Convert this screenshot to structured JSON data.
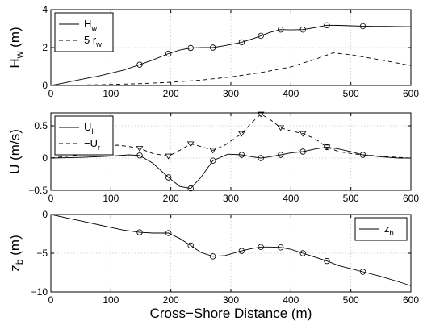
{
  "colors": {
    "axis": "#000000",
    "grid": "#c8c8c8",
    "line": "#000000",
    "background": "#ffffff"
  },
  "chart_data": [
    {
      "type": "line",
      "ylabel_main": "H",
      "ylabel_sub": "w",
      "ylabel_unit": " (m)",
      "xlabel": "",
      "xlim": [
        0,
        600
      ],
      "ylim": [
        0,
        4
      ],
      "xticks": [
        0,
        100,
        200,
        300,
        400,
        500,
        600
      ],
      "yticks": [
        0,
        2,
        4
      ],
      "grid": true,
      "legend_position": "top-left",
      "series": [
        {
          "name_main": "H",
          "name_sub": "w",
          "style": "solid",
          "marker": "circle",
          "x": [
            0,
            20,
            40,
            60,
            80,
            100,
            120,
            148,
            170,
            196,
            215,
            233,
            252,
            270,
            290,
            318,
            335,
            350,
            365,
            383,
            400,
            420,
            440,
            460,
            480,
            500,
            520,
            540,
            560,
            580,
            600
          ],
          "y": [
            0.0,
            0.12,
            0.25,
            0.38,
            0.5,
            0.65,
            0.8,
            1.1,
            1.35,
            1.68,
            1.87,
            1.98,
            2.0,
            2.0,
            2.1,
            2.28,
            2.45,
            2.62,
            2.8,
            2.95,
            2.93,
            2.95,
            3.05,
            3.18,
            3.17,
            3.15,
            3.13,
            3.12,
            3.12,
            3.11,
            3.1
          ],
          "marker_x": [
            148,
            196,
            233,
            270,
            318,
            350,
            383,
            420,
            460,
            520
          ]
        },
        {
          "name_main": "5 r",
          "name_sub": "w",
          "style": "dashed",
          "marker": "none",
          "x": [
            0,
            50,
            100,
            150,
            200,
            250,
            300,
            350,
            400,
            440,
            470,
            500,
            550,
            600
          ],
          "y": [
            0.0,
            0.02,
            0.05,
            0.1,
            0.17,
            0.28,
            0.45,
            0.68,
            0.98,
            1.38,
            1.72,
            1.62,
            1.35,
            1.05
          ]
        }
      ]
    },
    {
      "type": "line",
      "ylabel_main": "U",
      "ylabel_sub": "",
      "ylabel_unit": " (m/s)",
      "xlabel": "",
      "xlim": [
        0,
        600
      ],
      "ylim": [
        -0.5,
        0.7
      ],
      "xticks": [
        0,
        100,
        200,
        300,
        400,
        500,
        600
      ],
      "yticks": [
        -0.5,
        0,
        0.5
      ],
      "grid": true,
      "legend_position": "top-left",
      "series": [
        {
          "name_main": "U",
          "name_sub": "l",
          "style": "solid",
          "marker": "circle",
          "x": [
            0,
            50,
            100,
            130,
            148,
            170,
            196,
            215,
            233,
            250,
            270,
            295,
            318,
            335,
            350,
            365,
            383,
            400,
            420,
            440,
            460,
            480,
            500,
            520,
            550,
            580,
            600
          ],
          "y": [
            0.0,
            0.01,
            0.03,
            0.05,
            0.04,
            -0.08,
            -0.3,
            -0.44,
            -0.47,
            -0.3,
            -0.04,
            0.06,
            0.05,
            0.02,
            0.0,
            0.02,
            0.05,
            0.08,
            0.1,
            0.14,
            0.17,
            0.14,
            0.1,
            0.05,
            0.02,
            0.0,
            0.0
          ],
          "marker_x": [
            148,
            196,
            233,
            270,
            318,
            350,
            383,
            420,
            460,
            520
          ]
        },
        {
          "name_main": "−U",
          "name_sub": "r",
          "style": "dashed",
          "marker": "triangle-down",
          "x": [
            0,
            50,
            80,
            110,
            130,
            148,
            170,
            196,
            215,
            233,
            250,
            270,
            290,
            318,
            335,
            350,
            365,
            383,
            400,
            420,
            440,
            460,
            480,
            500,
            520,
            550,
            580,
            600
          ],
          "y": [
            0.0,
            0.05,
            0.15,
            0.2,
            0.18,
            0.15,
            0.07,
            0.03,
            0.12,
            0.22,
            0.18,
            0.12,
            0.2,
            0.38,
            0.55,
            0.68,
            0.6,
            0.47,
            0.42,
            0.38,
            0.3,
            0.17,
            0.1,
            0.07,
            0.05,
            0.03,
            0.01,
            0.0
          ],
          "marker_x": [
            148,
            196,
            233,
            270,
            318,
            350,
            383,
            420,
            460
          ]
        }
      ]
    },
    {
      "type": "line",
      "ylabel_main": "z",
      "ylabel_sub": "b",
      "ylabel_unit": " (m)",
      "xlabel": "Cross−Shore Distance (m)",
      "xlim": [
        0,
        600
      ],
      "ylim": [
        -10,
        0
      ],
      "xticks": [
        0,
        100,
        200,
        300,
        400,
        500,
        600
      ],
      "yticks": [
        -10,
        -5,
        0
      ],
      "grid": true,
      "legend_position": "top-right",
      "series": [
        {
          "name_main": "z",
          "name_sub": "b",
          "style": "solid",
          "marker": "circle",
          "x": [
            0,
            30,
            60,
            90,
            120,
            148,
            170,
            196,
            215,
            233,
            250,
            270,
            290,
            318,
            335,
            350,
            365,
            383,
            400,
            420,
            440,
            460,
            480,
            500,
            520,
            550,
            580,
            600
          ],
          "y": [
            0.0,
            -0.5,
            -1.0,
            -1.5,
            -2.0,
            -2.3,
            -2.4,
            -2.4,
            -3.1,
            -4.0,
            -4.9,
            -5.4,
            -5.3,
            -4.7,
            -4.4,
            -4.2,
            -4.2,
            -4.25,
            -4.5,
            -5.0,
            -5.5,
            -6.0,
            -6.6,
            -7.0,
            -7.4,
            -8.0,
            -8.7,
            -9.2
          ],
          "marker_x": [
            148,
            196,
            233,
            270,
            318,
            350,
            383,
            420,
            460,
            520
          ]
        }
      ]
    }
  ]
}
